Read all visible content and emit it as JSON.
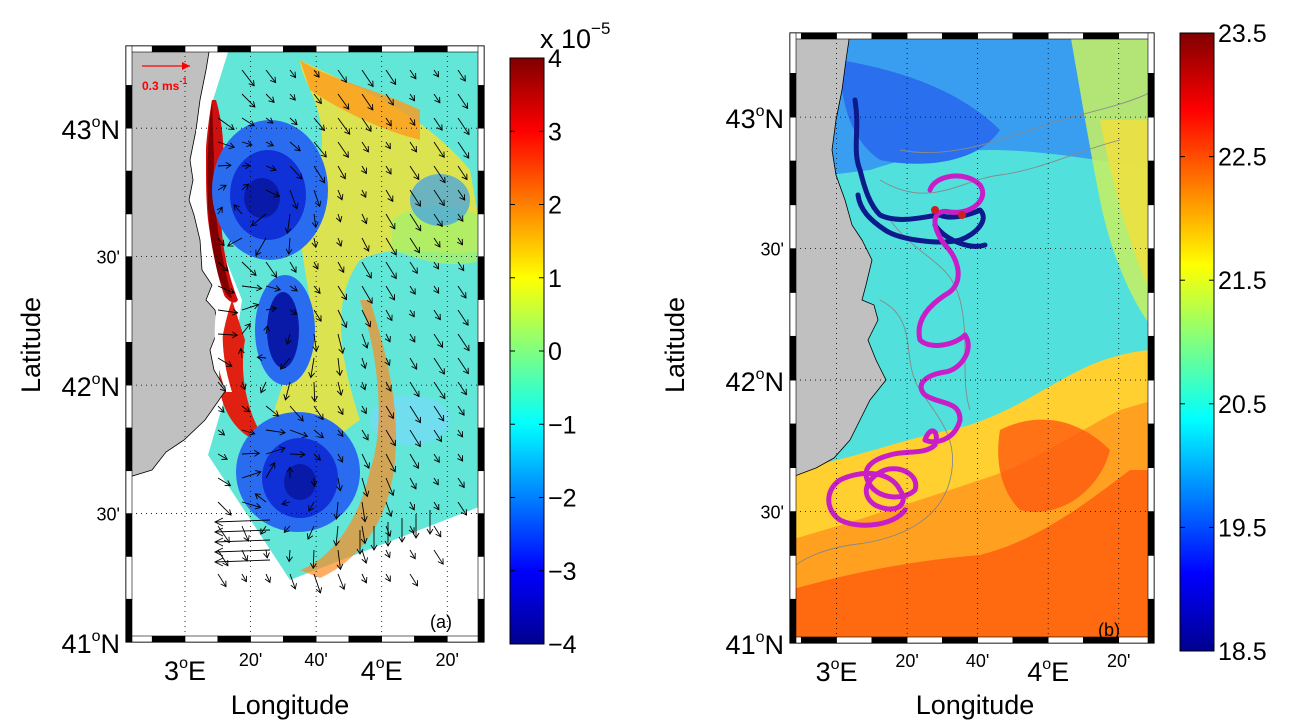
{
  "figure": {
    "panels": [
      {
        "id": "a",
        "panel_label": "(a)",
        "y_axis_label": "Latitude",
        "x_axis_label": "Longitude",
        "lat_ticks": [
          {
            "value": 43.0,
            "deg": "43",
            "hemi": "N",
            "label": ""
          },
          {
            "value": 42.5,
            "deg": "",
            "hemi": "",
            "label": "30'"
          },
          {
            "value": 42.0,
            "deg": "42",
            "hemi": "N",
            "label": ""
          },
          {
            "value": 41.5,
            "deg": "",
            "hemi": "",
            "label": "30'"
          },
          {
            "value": 41.0,
            "deg": "41",
            "hemi": "N",
            "label": ""
          }
        ],
        "lon_ticks": [
          {
            "value": 3.0,
            "deg": "3",
            "hemi": "E",
            "label": ""
          },
          {
            "value": 3.3333,
            "deg": "",
            "hemi": "",
            "label": "20'"
          },
          {
            "value": 3.6667,
            "deg": "",
            "hemi": "",
            "label": "40'"
          },
          {
            "value": 4.0,
            "deg": "4",
            "hemi": "E",
            "label": ""
          },
          {
            "value": 4.3333,
            "deg": "",
            "hemi": "",
            "label": "20'"
          }
        ],
        "scale_arrow_label": "0.3 ms",
        "scale_arrow_sup": "-1",
        "colorbar": {
          "ticks": [
            "4",
            "3",
            "2",
            "1",
            "0",
            "−1",
            "−2",
            "−3",
            "−4"
          ],
          "exponent_prefix": "x 10",
          "exponent_sup": "−5",
          "range": [
            -4,
            4
          ],
          "colormap": "jet"
        }
      },
      {
        "id": "b",
        "panel_label": "(b)",
        "y_axis_label": "Latitude",
        "x_axis_label": "Longitude",
        "lat_ticks": [
          {
            "value": 43.0,
            "deg": "43",
            "hemi": "N",
            "label": ""
          },
          {
            "value": 42.5,
            "deg": "",
            "hemi": "",
            "label": "30'"
          },
          {
            "value": 42.0,
            "deg": "42",
            "hemi": "N",
            "label": ""
          },
          {
            "value": 41.5,
            "deg": "",
            "hemi": "",
            "label": "30'"
          },
          {
            "value": 41.0,
            "deg": "41",
            "hemi": "N",
            "label": ""
          }
        ],
        "lon_ticks": [
          {
            "value": 3.0,
            "deg": "3",
            "hemi": "E",
            "label": ""
          },
          {
            "value": 3.3333,
            "deg": "",
            "hemi": "",
            "label": "20'"
          },
          {
            "value": 3.6667,
            "deg": "",
            "hemi": "",
            "label": "40'"
          },
          {
            "value": 4.0,
            "deg": "4",
            "hemi": "E",
            "label": ""
          },
          {
            "value": 4.3333,
            "deg": "",
            "hemi": "",
            "label": "20'"
          }
        ],
        "colorbar": {
          "ticks": [
            "23.5",
            "22.5",
            "21.5",
            "20.5",
            "19.5",
            "18.5"
          ],
          "range": [
            18.5,
            23.5
          ],
          "colormap": "jet"
        },
        "track_colors": {
          "blue_track": "#0d1a8c",
          "magenta_track": "#c81ec8"
        }
      }
    ],
    "colors": {
      "land": "#c0c0c0",
      "jet_dark_red": "#800000",
      "jet_dark_blue": "#00008f",
      "scale_arrow": "#ff0000"
    }
  }
}
